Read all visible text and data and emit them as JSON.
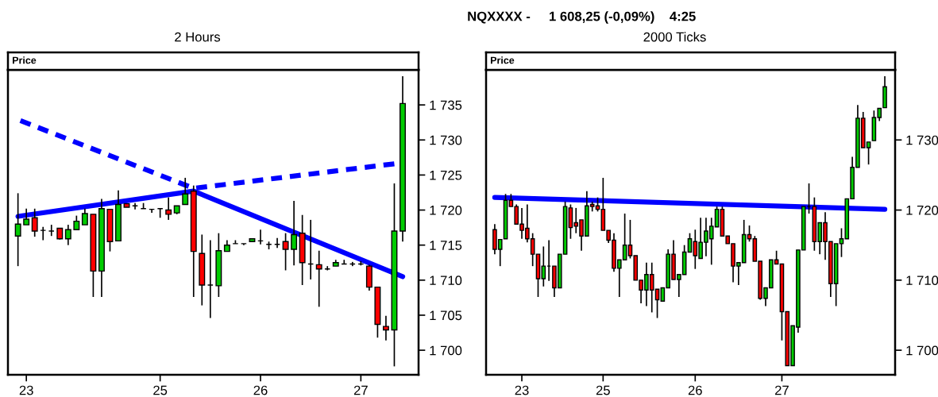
{
  "chart_data": [
    {
      "type": "candlestick",
      "title": "2 Hours",
      "ylabel": "Price",
      "annotations": [
        "NQXXXX -     1 608,25 (-0,09%)    4:25"
      ],
      "colors": [
        "#00cc00",
        "#00cc00",
        "#ff0000",
        "#000000",
        "#000000",
        "#ff0000",
        "#00cc00",
        "#00cc00",
        "#00cc00",
        "#ff0000",
        "#00cc00",
        "#ff0000",
        "#00cc00",
        "#ff0000",
        "#000000",
        "#000000",
        "#000000",
        "#000000",
        "#ff0000",
        "#00cc00",
        "#00cc00",
        "#ff0000",
        "#ff0000",
        "#000000",
        "#00cc00",
        "#00cc00",
        "#000000",
        "#000000",
        "#00cc00",
        "#000000",
        "#000000",
        "#000000",
        "#ff0000",
        "#00cc00",
        "#ff0000",
        "#000000",
        "#ff0000",
        "#000000",
        "#00cc00",
        "#000000",
        "#000000",
        "#000000",
        "#ff0000",
        "#ff0000",
        "#ff0000",
        "#00cc00",
        "#00cc00"
      ],
      "categories": [
        null,
        "23",
        null,
        null,
        null,
        null,
        null,
        null,
        null,
        null,
        null,
        null,
        null,
        null,
        null,
        null,
        null,
        "25",
        null,
        null,
        null,
        null,
        null,
        null,
        null,
        null,
        null,
        null,
        null,
        "26",
        null,
        null,
        null,
        null,
        null,
        null,
        null,
        null,
        null,
        null,
        null,
        "27",
        null,
        null,
        null,
        null,
        null
      ],
      "ohlc": [
        [
          1716.3,
          1722.4,
          1712.0,
          1718.0
        ],
        [
          1717.9,
          1720.2,
          1717.9,
          1718.7
        ],
        [
          1718.9,
          1720.2,
          1716.2,
          1717.0
        ],
        [
          1717.1,
          1717.6,
          1715.7,
          1717.1
        ],
        [
          1717.0,
          1717.9,
          1716.3,
          1717.0
        ],
        [
          1717.4,
          1717.4,
          1715.8,
          1715.9
        ],
        [
          1715.9,
          1717.9,
          1715.0,
          1717.2
        ],
        [
          1717.2,
          1719.2,
          1717.2,
          1718.4
        ],
        [
          1717.9,
          1720.2,
          1717.9,
          1719.5
        ],
        [
          1719.4,
          1719.4,
          1707.6,
          1711.3
        ],
        [
          1711.3,
          1721.6,
          1707.6,
          1720.2
        ],
        [
          1720.1,
          1720.1,
          1714.1,
          1715.5
        ],
        [
          1715.6,
          1722.8,
          1715.6,
          1720.8
        ],
        [
          1720.9,
          1720.9,
          1720.4,
          1720.4
        ],
        [
          1720.6,
          1721.0,
          1720.1,
          1720.6
        ],
        [
          1720.2,
          1721.0,
          1720.2,
          1720.2
        ],
        [
          1720.1,
          1720.1,
          1719.6,
          1720.1
        ],
        [
          1720.2,
          1720.2,
          1718.9,
          1720.2
        ],
        [
          1720.0,
          1721.8,
          1718.6,
          1719.4
        ],
        [
          1719.6,
          1720.6,
          1719.4,
          1720.6
        ],
        [
          1720.8,
          1724.6,
          1720.8,
          1722.3
        ],
        [
          1722.7,
          1723.5,
          1707.6,
          1714.1
        ],
        [
          1713.8,
          1716.5,
          1706.4,
          1709.3
        ],
        [
          1709.3,
          1715.7,
          1704.6,
          1709.3
        ],
        [
          1709.2,
          1716.7,
          1707.6,
          1714.2
        ],
        [
          1714.1,
          1715.7,
          1714.1,
          1715.0
        ],
        [
          1715.2,
          1715.7,
          1715.2,
          1715.2
        ],
        [
          1715.2,
          1715.2,
          1715.0,
          1715.2
        ],
        [
          1715.5,
          1715.9,
          1715.5,
          1715.9
        ],
        [
          1715.6,
          1717.2,
          1715.1,
          1715.6
        ],
        [
          1715.1,
          1715.5,
          1714.4,
          1715.1
        ],
        [
          1715.1,
          1716.0,
          1714.6,
          1715.1
        ],
        [
          1715.5,
          1716.7,
          1711.4,
          1714.4
        ],
        [
          1714.4,
          1721.3,
          1712.1,
          1716.5
        ],
        [
          1716.7,
          1719.3,
          1709.3,
          1712.5
        ],
        [
          1712.3,
          1718.6,
          1710.1,
          1712.3
        ],
        [
          1712.2,
          1714.2,
          1706.2,
          1711.6
        ],
        [
          1711.6,
          1712.0,
          1711.4,
          1711.6
        ],
        [
          1712.0,
          1712.9,
          1712.0,
          1712.5
        ],
        [
          1712.3,
          1712.9,
          1712.3,
          1712.3
        ],
        [
          1712.3,
          1712.6,
          1712.0,
          1712.3
        ],
        [
          1712.3,
          1712.7,
          1712.1,
          1712.3
        ],
        [
          1712.0,
          1712.2,
          1708.5,
          1709.0
        ],
        [
          1709.0,
          1709.0,
          1701.8,
          1703.7
        ],
        [
          1703.4,
          1704.9,
          1701.4,
          1702.9
        ],
        [
          1702.9,
          1723.8,
          1697.7,
          1717.0
        ],
        [
          1717.0,
          1739.1,
          1715.5,
          1735.2
        ]
      ],
      "series": [
        {
          "type": "line",
          "color": "#0000ff",
          "line_style": "solid",
          "values": [
            1719.1,
            null,
            null,
            null,
            null,
            null,
            null,
            null,
            null,
            null,
            null,
            null,
            null,
            null,
            null,
            null,
            null,
            null,
            null,
            null,
            null,
            1722.7,
            null,
            null,
            null,
            null,
            null,
            null,
            null,
            null,
            null,
            null,
            null,
            null,
            null,
            null,
            null,
            null,
            null,
            null,
            null,
            null,
            null,
            null,
            null,
            null,
            1710.5
          ]
        },
        {
          "type": "line",
          "color": "#0000ff",
          "line_style": "dashed",
          "values": [
            1732.9,
            null,
            null,
            null,
            null,
            null,
            null,
            null,
            null,
            null,
            null,
            null,
            null,
            null,
            null,
            null,
            null,
            null,
            null,
            null,
            null,
            1723.1,
            null,
            null,
            null,
            null,
            null,
            null,
            null,
            null,
            null,
            null,
            null,
            null,
            null,
            null,
            null,
            null,
            null,
            null,
            null,
            null,
            null,
            null,
            null,
            1726.6,
            null
          ]
        }
      ],
      "ylim": [
        1696.5,
        1740
      ],
      "yticks": [
        {
          "value": 1700,
          "label": "1 700"
        },
        {
          "value": 1705,
          "label": "1 705"
        },
        {
          "value": 1710,
          "label": "1 710"
        },
        {
          "value": 1715,
          "label": "1 715"
        },
        {
          "value": 1720,
          "label": "1 720"
        },
        {
          "value": 1725,
          "label": "1 725"
        },
        {
          "value": 1730,
          "label": "1 730"
        },
        {
          "value": 1735,
          "label": "1 735"
        }
      ]
    },
    {
      "type": "candlestick",
      "title": "2000 Ticks",
      "ylabel": "Price",
      "colors": [
        "#ff0000",
        "#00cc00",
        "#00cc00",
        "#ff0000",
        "#ff0000",
        "#ff0000",
        "#ff0000",
        "#ff0000",
        "#ff0000",
        "#00cc00",
        "#000000",
        "#ff0000",
        "#00cc00",
        "#00cc00",
        "#ff0000",
        "#ff0000",
        "#ff0000",
        "#00cc00",
        "#ff0000",
        "#ff0000",
        "#ff0000",
        "#ff0000",
        "#ff0000",
        "#00cc00",
        "#00cc00",
        "#ff0000",
        "#ff0000",
        "#ff0000",
        "#00cc00",
        "#ff0000",
        "#ff0000",
        "#00cc00",
        "#00cc00",
        "#ff0000",
        "#00cc00",
        "#00cc00",
        "#00cc00",
        "#ff0000",
        "#00cc00",
        "#00cc00",
        "#00cc00",
        "#00cc00",
        "#ff0000",
        "#ff0000",
        "#ff0000",
        "#00cc00",
        "#00cc00",
        "#ff0000",
        "#ff0000",
        "#ff0000",
        "#00cc00",
        "#00cc00",
        "#ff0000",
        "#ff0000",
        "#ff0000",
        "#00cc00",
        "#00cc00",
        "#00cc00",
        "#000000",
        "#ff0000",
        "#00cc00",
        "#ff0000",
        "#ff0000",
        "#00cc00",
        "#00cc00",
        "#00cc00",
        "#00cc00",
        "#00cc00",
        "#ff0000",
        "#00cc00",
        "#00cc00",
        "#00cc00",
        "#00cc00"
      ],
      "categories": [
        null,
        null,
        null,
        null,
        null,
        "23",
        null,
        null,
        null,
        null,
        null,
        null,
        null,
        null,
        null,
        null,
        null,
        null,
        null,
        null,
        "25",
        null,
        null,
        null,
        null,
        null,
        null,
        null,
        null,
        null,
        null,
        null,
        null,
        null,
        null,
        null,
        null,
        "26",
        null,
        null,
        null,
        null,
        null,
        null,
        null,
        null,
        null,
        null,
        null,
        null,
        null,
        null,
        null,
        "27",
        null,
        null,
        null,
        null,
        null,
        null,
        null,
        null,
        null,
        null,
        null,
        null,
        null,
        null,
        null,
        null,
        null,
        null,
        null
      ],
      "ohlc": [
        [
          1717.2,
          1718.0,
          1713.7,
          1714.4
        ],
        [
          1714.4,
          1715.8,
          1712.0,
          1715.8
        ],
        [
          1715.9,
          1722.3,
          1715.9,
          1721.4
        ],
        [
          1721.4,
          1722.3,
          1720.5,
          1720.5
        ],
        [
          1720.5,
          1720.8,
          1718.0,
          1718.0
        ],
        [
          1718.0,
          1720.3,
          1715.9,
          1717.1
        ],
        [
          1717.4,
          1720.8,
          1715.4,
          1715.9
        ],
        [
          1715.9,
          1716.7,
          1712.0,
          1713.7
        ],
        [
          1713.7,
          1713.7,
          1707.6,
          1710.2
        ],
        [
          1710.2,
          1714.8,
          1709.1,
          1712.0
        ],
        [
          1712.0,
          1715.7,
          1709.9,
          1712.0
        ],
        [
          1712.0,
          1712.0,
          1707.6,
          1708.9
        ],
        [
          1708.9,
          1713.7,
          1708.9,
          1713.7
        ],
        [
          1713.7,
          1721.2,
          1713.7,
          1720.5
        ],
        [
          1720.3,
          1720.8,
          1715.9,
          1717.5
        ],
        [
          1718.2,
          1720.3,
          1716.7,
          1717.7
        ],
        [
          1718.6,
          1718.6,
          1714.2,
          1716.3
        ],
        [
          1716.3,
          1722.7,
          1716.3,
          1720.6
        ],
        [
          1720.8,
          1721.2,
          1719.8,
          1720.5
        ],
        [
          1720.6,
          1721.8,
          1719.8,
          1720.1
        ],
        [
          1720.1,
          1724.6,
          1717.1,
          1717.1
        ],
        [
          1717.1,
          1717.1,
          1715.3,
          1715.7
        ],
        [
          1715.7,
          1716.7,
          1711.2,
          1711.7
        ],
        [
          1711.7,
          1712.9,
          1707.6,
          1712.9
        ],
        [
          1712.9,
          1719.5,
          1712.9,
          1715.0
        ],
        [
          1715.0,
          1718.6,
          1713.1,
          1713.5
        ],
        [
          1713.5,
          1713.5,
          1710.0,
          1710.0
        ],
        [
          1710.0,
          1710.0,
          1706.7,
          1708.6
        ],
        [
          1708.6,
          1712.5,
          1706.3,
          1710.8
        ],
        [
          1710.8,
          1712.5,
          1705.4,
          1708.6
        ],
        [
          1708.7,
          1708.7,
          1704.6,
          1707.2
        ],
        [
          1707.0,
          1708.9,
          1707.0,
          1708.9
        ],
        [
          1708.9,
          1714.4,
          1708.9,
          1713.7
        ],
        [
          1713.7,
          1715.7,
          1710.1,
          1710.1
        ],
        [
          1710.1,
          1710.8,
          1707.6,
          1710.8
        ],
        [
          1710.8,
          1715.0,
          1710.8,
          1714.0
        ],
        [
          1714.0,
          1716.7,
          1714.0,
          1715.9
        ],
        [
          1715.5,
          1717.2,
          1711.6,
          1713.5
        ],
        [
          1713.1,
          1718.9,
          1713.1,
          1715.4
        ],
        [
          1715.4,
          1718.9,
          1713.4,
          1717.0
        ],
        [
          1715.9,
          1718.9,
          1712.2,
          1717.7
        ],
        [
          1717.6,
          1720.5,
          1717.6,
          1720.1
        ],
        [
          1720.1,
          1720.5,
          1716.3,
          1716.3
        ],
        [
          1716.3,
          1716.3,
          1715.2,
          1715.2
        ],
        [
          1715.2,
          1715.2,
          1709.7,
          1712.0
        ],
        [
          1712.0,
          1712.5,
          1709.3,
          1712.5
        ],
        [
          1712.5,
          1718.6,
          1712.5,
          1716.5
        ],
        [
          1716.5,
          1717.8,
          1715.5,
          1715.9
        ],
        [
          1715.9,
          1716.3,
          1712.7,
          1712.7
        ],
        [
          1712.7,
          1712.7,
          1707.2,
          1707.4
        ],
        [
          1707.4,
          1708.9,
          1706.3,
          1708.9
        ],
        [
          1708.9,
          1712.9,
          1708.9,
          1712.9
        ],
        [
          1712.9,
          1714.2,
          1712.3,
          1712.3
        ],
        [
          1712.3,
          1712.3,
          1701.4,
          1705.5
        ],
        [
          1705.5,
          1705.5,
          1697.8,
          1697.8
        ],
        [
          1697.8,
          1703.5,
          1697.8,
          1703.5
        ],
        [
          1703.3,
          1714.3,
          1702.5,
          1714.3
        ],
        [
          1714.3,
          1720.5,
          1714.3,
          1720.5
        ],
        [
          1720.5,
          1723.8,
          1719.5,
          1720.5
        ],
        [
          1720.5,
          1721.8,
          1714.2,
          1715.5
        ],
        [
          1715.5,
          1718.2,
          1713.7,
          1718.2
        ],
        [
          1718.2,
          1719.7,
          1712.9,
          1715.5
        ],
        [
          1715.5,
          1715.5,
          1707.6,
          1709.5
        ],
        [
          1709.5,
          1715.2,
          1706.3,
          1715.2
        ],
        [
          1715.2,
          1717.4,
          1713.3,
          1715.9
        ],
        [
          1715.9,
          1721.6,
          1715.9,
          1721.6
        ],
        [
          1721.6,
          1727.6,
          1721.6,
          1726.1
        ],
        [
          1726.1,
          1735.0,
          1726.1,
          1733.1
        ],
        [
          1733.1,
          1734.0,
          1728.9,
          1728.9
        ],
        [
          1728.9,
          1729.7,
          1726.5,
          1729.7
        ],
        [
          1729.9,
          1734.2,
          1729.9,
          1733.2
        ],
        [
          1733.2,
          1734.5,
          1732.7,
          1734.5
        ],
        [
          1734.6,
          1739.1,
          1734.6,
          1737.6
        ]
      ],
      "series": [
        {
          "type": "line",
          "color": "#0000ff",
          "line_style": "solid",
          "values": [
            1721.8,
            null,
            null,
            null,
            null,
            null,
            null,
            null,
            null,
            null,
            null,
            null,
            null,
            null,
            null,
            null,
            null,
            null,
            null,
            null,
            null,
            null,
            null,
            null,
            null,
            null,
            null,
            null,
            null,
            null,
            null,
            null,
            null,
            null,
            null,
            null,
            null,
            null,
            null,
            null,
            null,
            null,
            null,
            null,
            null,
            null,
            null,
            null,
            null,
            null,
            null,
            null,
            null,
            null,
            null,
            null,
            null,
            null,
            null,
            null,
            null,
            null,
            null,
            null,
            null,
            null,
            null,
            null,
            null,
            null,
            null,
            null,
            1720.1
          ]
        }
      ],
      "ylim": [
        1696.5,
        1740
      ],
      "yticks": [
        {
          "value": 1700,
          "label": "1 700"
        },
        {
          "value": 1710,
          "label": "1 710"
        },
        {
          "value": 1720,
          "label": "1 720"
        },
        {
          "value": 1730,
          "label": "1 730"
        }
      ]
    }
  ]
}
